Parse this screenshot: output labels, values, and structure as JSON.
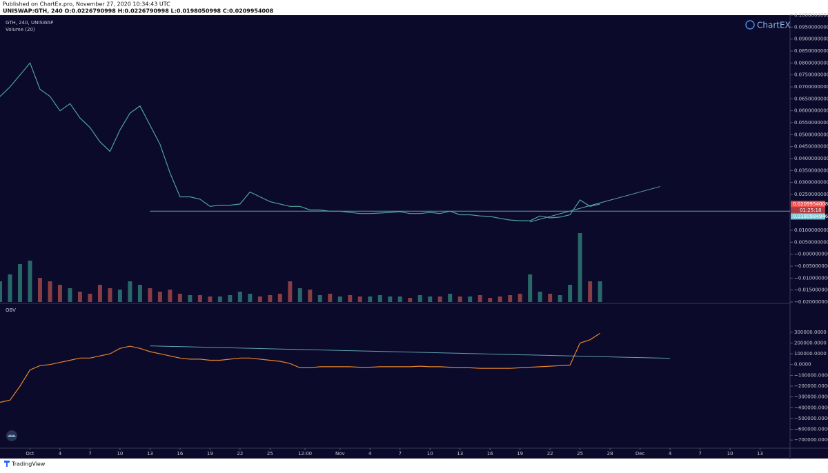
{
  "header": {
    "published": "Published on ChartEx.pro, November 27, 2020 10:34:43 UTC",
    "symbol": "UNISWAP:GTH, 240  O:0.0226790998 H:0.0226790998 L:0.0198050998 C:0.0209954008"
  },
  "logo": "ChartEX",
  "footer": "TradingView",
  "chart_data": [
    {
      "type": "line",
      "title": "GTH, 240, UNISWAP",
      "subtitle": "Volume (20)",
      "color": "#4fa39a",
      "up_color": "#2f7f78",
      "down_color": "#a54a4a",
      "x": [
        "09-28",
        "09-29",
        "09-30",
        "10-01",
        "10-02",
        "10-03",
        "10-04",
        "10-05",
        "10-06",
        "10-07",
        "10-08",
        "10-09",
        "10-10",
        "10-11",
        "10-12",
        "10-13",
        "10-14",
        "10-15",
        "10-16",
        "10-17",
        "10-18",
        "10-19",
        "10-20",
        "10-21",
        "10-22",
        "10-23",
        "10-24",
        "10-25",
        "10-26",
        "10-27",
        "10-28",
        "10-29",
        "10-30",
        "10-31",
        "11-01",
        "11-02",
        "11-03",
        "11-04",
        "11-05",
        "11-06",
        "11-07",
        "11-08",
        "11-09",
        "11-10",
        "11-11",
        "11-12",
        "11-13",
        "11-14",
        "11-15",
        "11-16",
        "11-17",
        "11-18",
        "11-19",
        "11-20",
        "11-21",
        "11-22",
        "11-23",
        "11-24",
        "11-25",
        "11-26",
        "11-27"
      ],
      "values": [
        0.066,
        0.07,
        0.075,
        0.08,
        0.069,
        0.066,
        0.06,
        0.063,
        0.057,
        0.053,
        0.047,
        0.043,
        0.052,
        0.059,
        0.062,
        0.054,
        0.046,
        0.034,
        0.024,
        0.024,
        0.023,
        0.02,
        0.0205,
        0.0205,
        0.021,
        0.026,
        0.024,
        0.022,
        0.021,
        0.02,
        0.02,
        0.0185,
        0.0185,
        0.018,
        0.018,
        0.0175,
        0.017,
        0.017,
        0.0172,
        0.0175,
        0.0178,
        0.017,
        0.017,
        0.0175,
        0.017,
        0.018,
        0.0165,
        0.0165,
        0.016,
        0.0158,
        0.015,
        0.0143,
        0.014,
        0.014,
        0.016,
        0.0152,
        0.0155,
        0.0165,
        0.0227,
        0.02,
        0.021
      ],
      "volume": [
        30,
        40,
        55,
        60,
        35,
        30,
        25,
        20,
        15,
        12,
        25,
        20,
        18,
        30,
        25,
        20,
        15,
        18,
        12,
        10,
        10,
        8,
        8,
        10,
        15,
        12,
        8,
        10,
        12,
        30,
        20,
        18,
        10,
        12,
        8,
        10,
        8,
        8,
        10,
        8,
        8,
        6,
        10,
        8,
        8,
        12,
        8,
        8,
        10,
        6,
        8,
        10,
        12,
        40,
        15,
        12,
        10,
        25,
        100,
        30,
        30
      ],
      "vlim": [
        0,
        100
      ],
      "xlim": [
        "09-28",
        "12-16"
      ],
      "ylim": [
        -0.02,
        0.1
      ],
      "yticks": [
        {
          "value": 0.1,
          "label": "0.1000000000"
        },
        {
          "value": 0.095,
          "label": "0.0950000000"
        },
        {
          "value": 0.09,
          "label": "0.0900000000"
        },
        {
          "value": 0.085,
          "label": "0.0850000000"
        },
        {
          "value": 0.08,
          "label": "0.0800000000"
        },
        {
          "value": 0.075,
          "label": "0.0750000000"
        },
        {
          "value": 0.07,
          "label": "0.0700000000"
        },
        {
          "value": 0.065,
          "label": "0.0650000000"
        },
        {
          "value": 0.06,
          "label": "0.0600000000"
        },
        {
          "value": 0.055,
          "label": "0.0550000000"
        },
        {
          "value": 0.05,
          "label": "0.0500000000"
        },
        {
          "value": 0.045,
          "label": "0.0450000000"
        },
        {
          "value": 0.04,
          "label": "0.0400000000"
        },
        {
          "value": 0.035,
          "label": "0.0350000000"
        },
        {
          "value": 0.03,
          "label": "0.0300000000"
        },
        {
          "value": 0.025,
          "label": "0.0250000000"
        },
        {
          "value": 0.01,
          "label": "0.0100000000"
        },
        {
          "value": 0.005,
          "label": "0.0050000000"
        },
        {
          "value": 0,
          "label": "−0.0000000000"
        },
        {
          "value": -0.005,
          "label": "−0.0050000000"
        },
        {
          "value": -0.01,
          "label": "−0.0100000000"
        },
        {
          "value": -0.015,
          "label": "−0.0150000000"
        },
        {
          "value": -0.02,
          "label": "−0.0200000000"
        }
      ],
      "price_labels": [
        {
          "value": 0.0209954008,
          "color": "#ef5350"
        },
        {
          "value": 0.0180984946,
          "color": "#7fc6d6"
        }
      ],
      "countdown": "01:25:18",
      "lines": [
        {
          "x": [
            "10-13",
            "12-16"
          ],
          "y": [
            0.018,
            0.018
          ],
          "color": "#5fa3b0"
        },
        {
          "x": [
            "11-20",
            "12-03"
          ],
          "y": [
            0.0135,
            0.0283
          ],
          "color": "#5fa3b0"
        }
      ]
    },
    {
      "type": "line",
      "title": "OBV",
      "color": "#e8862a",
      "x": [
        "09-28",
        "09-29",
        "09-30",
        "10-01",
        "10-02",
        "10-03",
        "10-04",
        "10-05",
        "10-06",
        "10-07",
        "10-08",
        "10-09",
        "10-10",
        "10-11",
        "10-12",
        "10-13",
        "10-14",
        "10-15",
        "10-16",
        "10-17",
        "10-18",
        "10-19",
        "10-20",
        "10-21",
        "10-22",
        "10-23",
        "10-24",
        "10-25",
        "10-26",
        "10-27",
        "10-28",
        "10-29",
        "10-30",
        "10-31",
        "11-01",
        "11-02",
        "11-03",
        "11-04",
        "11-05",
        "11-06",
        "11-07",
        "11-08",
        "11-09",
        "11-10",
        "11-11",
        "11-12",
        "11-13",
        "11-14",
        "11-15",
        "11-16",
        "11-17",
        "11-18",
        "11-19",
        "11-20",
        "11-21",
        "11-22",
        "11-23",
        "11-24",
        "11-25",
        "11-26",
        "11-27"
      ],
      "values": [
        -350000,
        -330000,
        -200000,
        -50000,
        -10000,
        0,
        20000,
        40000,
        60000,
        60000,
        80000,
        100000,
        150000,
        170000,
        150000,
        120000,
        100000,
        80000,
        60000,
        50000,
        50000,
        40000,
        40000,
        50000,
        60000,
        60000,
        50000,
        40000,
        30000,
        10000,
        -30000,
        -30000,
        -20000,
        -20000,
        -20000,
        -20000,
        -25000,
        -25000,
        -20000,
        -20000,
        -20000,
        -20000,
        -15000,
        -20000,
        -20000,
        -25000,
        -30000,
        -30000,
        -35000,
        -35000,
        -35000,
        -35000,
        -30000,
        -25000,
        -20000,
        -15000,
        -10000,
        -5000,
        200000,
        230000,
        290000
      ],
      "xlim": [
        "09-28",
        "12-16"
      ],
      "ylim": [
        -750000,
        350000
      ],
      "yticks": [
        {
          "value": 300000,
          "label": "300000.0000"
        },
        {
          "value": 200000,
          "label": "200000.0000"
        },
        {
          "value": 100000,
          "label": "100000.0000"
        },
        {
          "value": 0,
          "label": "0.0000"
        },
        {
          "value": -100000,
          "label": "−100000.0000"
        },
        {
          "value": -200000,
          "label": "−200000.0000"
        },
        {
          "value": -300000,
          "label": "−300000.0000"
        },
        {
          "value": -400000,
          "label": "−400000.0000"
        },
        {
          "value": -500000,
          "label": "−500000.0000"
        },
        {
          "value": -600000,
          "label": "−600000.0000"
        },
        {
          "value": -700000,
          "label": "−700000.0000"
        }
      ],
      "xticks": [
        {
          "value": "10-01",
          "label": "Oct"
        },
        {
          "value": "10-04",
          "label": "4"
        },
        {
          "value": "10-07",
          "label": "7"
        },
        {
          "value": "10-10",
          "label": "10"
        },
        {
          "value": "10-13",
          "label": "13"
        },
        {
          "value": "10-16",
          "label": "16"
        },
        {
          "value": "10-19",
          "label": "19"
        },
        {
          "value": "10-22",
          "label": "22"
        },
        {
          "value": "10-25",
          "label": "25"
        },
        {
          "value": "10-28 12:00",
          "label": "12:00"
        },
        {
          "value": "11-01",
          "label": "Nov"
        },
        {
          "value": "11-04",
          "label": "4"
        },
        {
          "value": "11-07",
          "label": "7"
        },
        {
          "value": "11-10",
          "label": "10"
        },
        {
          "value": "11-13",
          "label": "13"
        },
        {
          "value": "11-16",
          "label": "16"
        },
        {
          "value": "11-19",
          "label": "19"
        },
        {
          "value": "11-22",
          "label": "22"
        },
        {
          "value": "11-25",
          "label": "25"
        },
        {
          "value": "11-28",
          "label": "28"
        },
        {
          "value": "12-01",
          "label": "Dec"
        },
        {
          "value": "12-04",
          "label": "4"
        },
        {
          "value": "12-07",
          "label": "7"
        },
        {
          "value": "12-10",
          "label": "10"
        },
        {
          "value": "12-13",
          "label": "13"
        }
      ],
      "lines": [
        {
          "x": [
            "10-13",
            "12-04"
          ],
          "y": [
            173000,
            58000
          ],
          "color": "#5fa3b0"
        }
      ]
    }
  ]
}
